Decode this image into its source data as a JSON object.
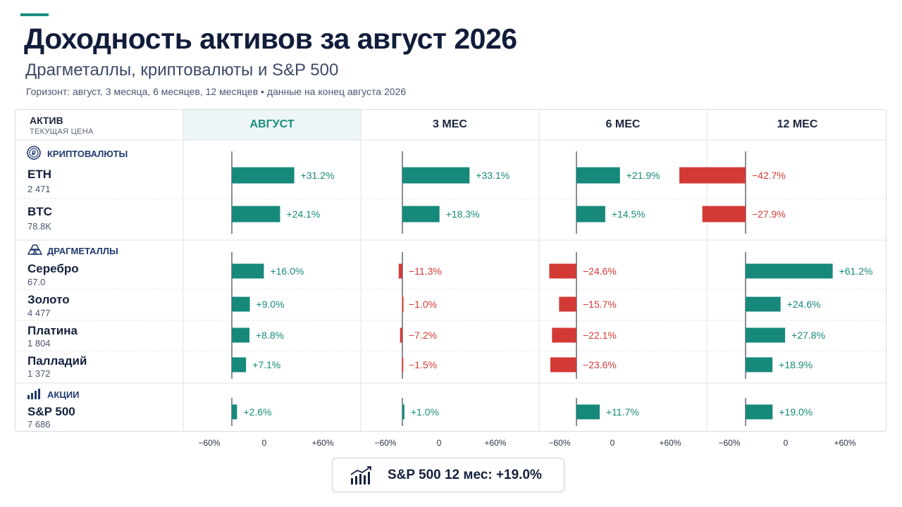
{
  "title": "Доходность активов за август 2026",
  "subtitle": "Драгметаллы, криптовалюты и S&P 500",
  "meta": "Горизонт: август, 3 месяца, 6 месяцев, 12 месяцев  •  данные на конец августа 2026",
  "table": {
    "asset_header": "АКТИВ",
    "asset_subheader": "ТЕКУЩАЯ ЦЕНА"
  },
  "categories": {
    "crypto": {
      "label": "КРИПТОВАЛЮТЫ",
      "icon": "crypto-coin-icon"
    },
    "metals": {
      "label": "ДРАГМЕТАЛЛЫ",
      "icon": "gold-bars-icon"
    },
    "stocks": {
      "label": "АКЦИИ",
      "icon": "bar-chart-icon"
    }
  },
  "colors": {
    "positive": "#16897a",
    "negative": "#d33a36",
    "accent": "#1a8f7e"
  },
  "chart_data": {
    "type": "bar",
    "orientation": "horizontal",
    "periods": [
      "АВГУСТ",
      "3 МЕС",
      "6 МЕС",
      "12 МЕС"
    ],
    "highlighted_period": "АВГУСТ",
    "xlim": [
      -60,
      60
    ],
    "tick_labels": [
      "−60%",
      "0",
      "+60%"
    ],
    "assets": [
      {
        "name": "ETH",
        "price": "2 471",
        "category": "crypto",
        "values": [
          31.2,
          33.1,
          21.9,
          -42.7
        ],
        "labels": [
          "+31.2%",
          "+33.1%",
          "+21.9%",
          "−42.7%"
        ]
      },
      {
        "name": "BTC",
        "price": "78.8K",
        "category": "crypto",
        "values": [
          24.1,
          18.3,
          14.5,
          -27.9
        ],
        "labels": [
          "+24.1%",
          "+18.3%",
          "+14.5%",
          "−27.9%"
        ]
      },
      {
        "name": "Серебро",
        "price": "67.0",
        "category": "metals",
        "values": [
          16.0,
          -11.3,
          -24.6,
          61.2
        ],
        "labels": [
          "+16.0%",
          "−11.3%",
          "−24.6%",
          "+61.2%"
        ]
      },
      {
        "name": "Золото",
        "price": "4 477",
        "category": "metals",
        "values": [
          9.0,
          -1.0,
          -15.7,
          24.6
        ],
        "labels": [
          "+9.0%",
          "−1.0%",
          "−15.7%",
          "+24.6%"
        ]
      },
      {
        "name": "Платина",
        "price": "1 804",
        "category": "metals",
        "values": [
          8.8,
          -7.2,
          -22.1,
          27.8
        ],
        "labels": [
          "+8.8%",
          "−7.2%",
          "−22.1%",
          "+27.8%"
        ]
      },
      {
        "name": "Палладий",
        "price": "1 372",
        "category": "metals",
        "values": [
          7.1,
          -1.5,
          -23.6,
          18.9
        ],
        "labels": [
          "+7.1%",
          "−1.5%",
          "−23.6%",
          "+18.9%"
        ]
      },
      {
        "name": "S&P 500",
        "price": "7 686",
        "category": "stocks",
        "values": [
          2.6,
          1.0,
          11.7,
          19.0
        ],
        "labels": [
          "+2.6%",
          "+1.0%",
          "+11.7%",
          "+19.0%"
        ]
      }
    ]
  },
  "summary": {
    "text": "S&P 500 12 мес: +19.0%",
    "icon": "trend-up-icon"
  }
}
